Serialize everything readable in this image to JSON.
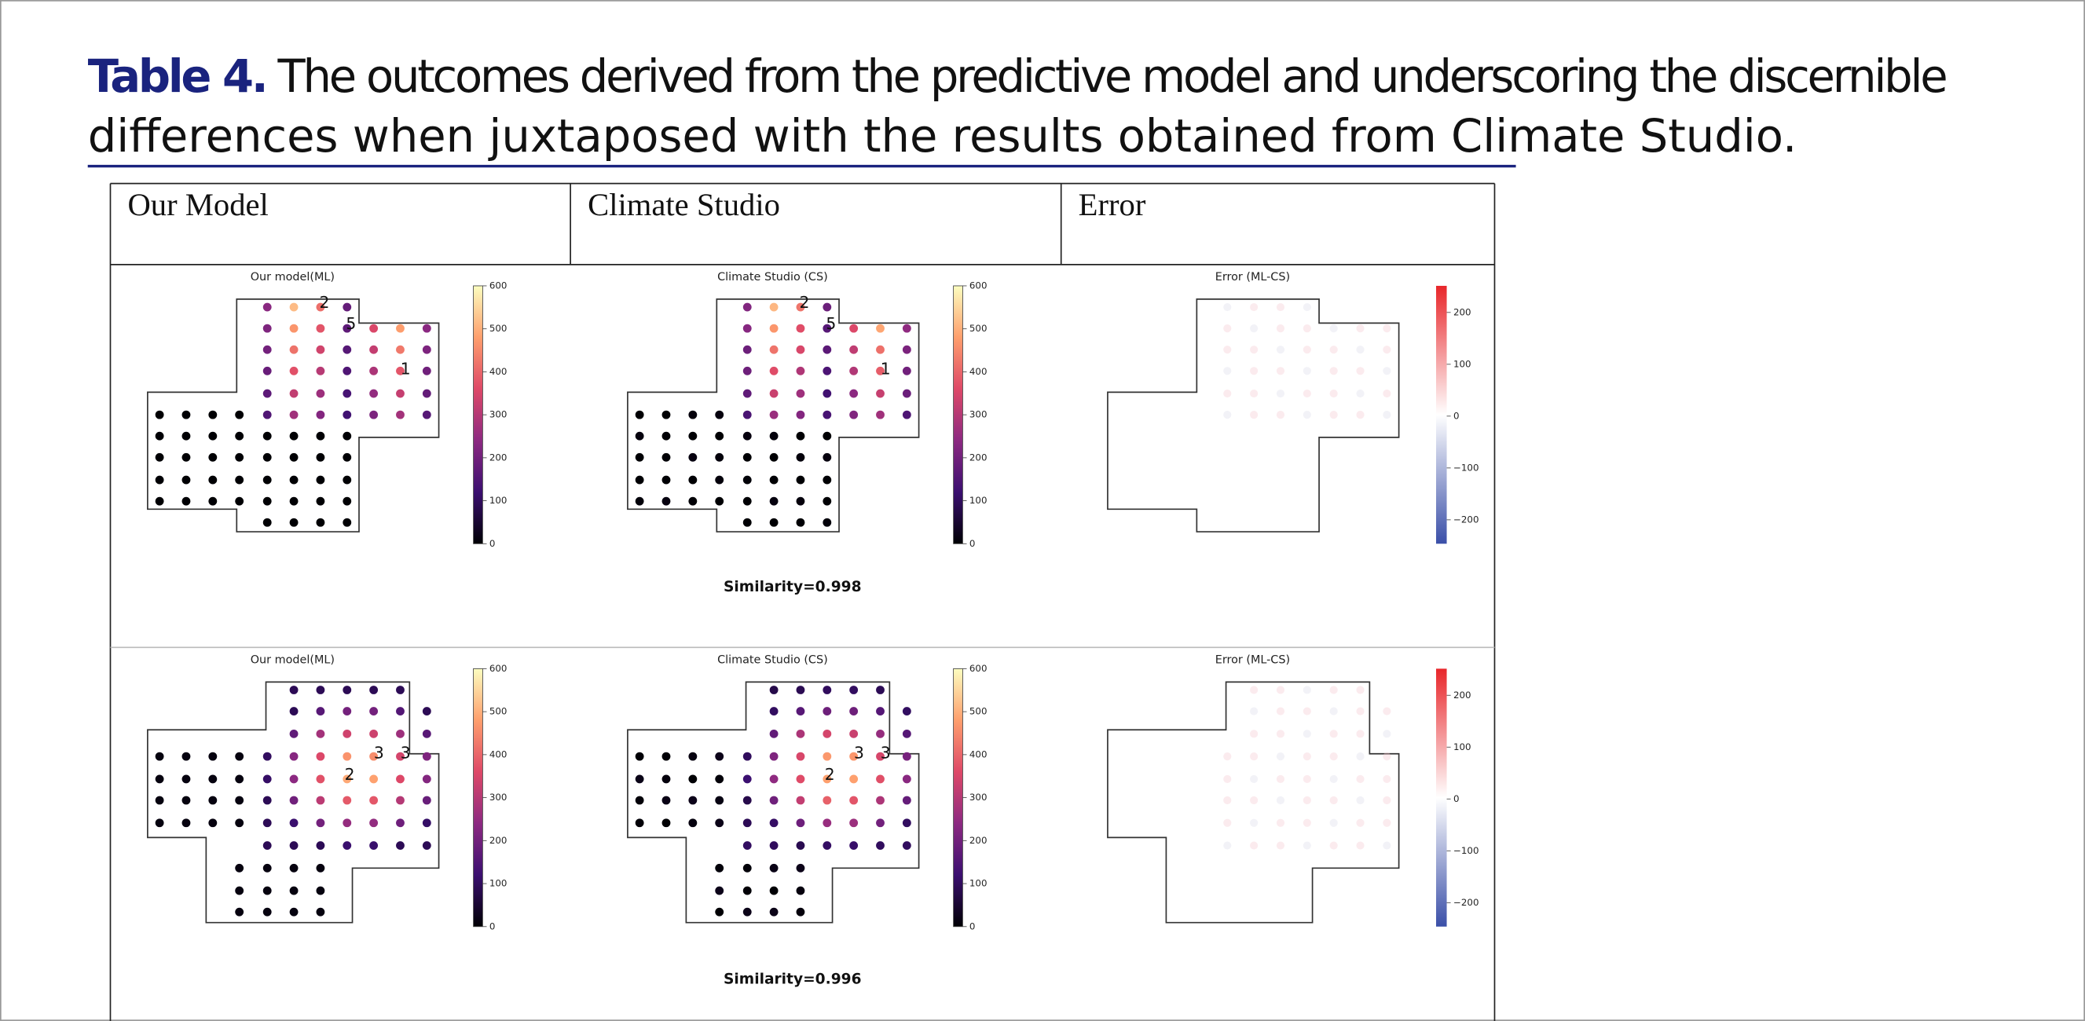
{
  "caption": {
    "label": "Table 4.",
    "lines": [
      "The outcomes derived from the predictive model and underscoring the discernible",
      "differences when juxtaposed with the results obtained from Climate Studio."
    ]
  },
  "table": {
    "header": [
      "Our Model",
      "Climate Studio",
      "Error"
    ],
    "rows": [
      {
        "titles": [
          "Our model(ML)",
          "Climate Studio (CS)",
          "Error (ML-CS)"
        ],
        "value_ticks": [
          "600",
          "500",
          "400",
          "300",
          "200",
          "100",
          "0"
        ],
        "error_ticks": [
          "200",
          "100",
          "0",
          "−100",
          "−200"
        ],
        "markers": [
          [
            "2",
            "5",
            "1"
          ],
          [
            "2",
            "5",
            "1"
          ]
        ],
        "similarity": "Similarity=0.998"
      },
      {
        "titles": [
          "Our model(ML)",
          "Climate Studio (CS)",
          "Error (ML-CS)"
        ],
        "value_ticks": [
          "600",
          "500",
          "400",
          "300",
          "200",
          "100",
          "0"
        ],
        "error_ticks": [
          "200",
          "100",
          "0",
          "−100",
          "−200"
        ],
        "markers": [
          [
            "2",
            "3",
            "3"
          ],
          [
            "2",
            "3",
            "3"
          ]
        ],
        "similarity": "Similarity=0.996"
      }
    ]
  }
}
